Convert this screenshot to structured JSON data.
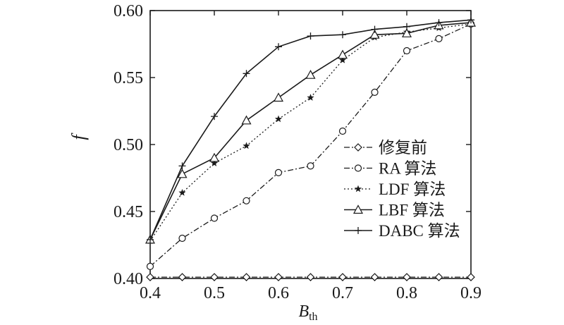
{
  "chart_data": {
    "type": "line",
    "title": "",
    "xlabel": "B",
    "xlabel_sub": "th",
    "ylabel": "f",
    "xlim": [
      0.4,
      0.9
    ],
    "ylim": [
      0.4,
      0.6
    ],
    "x_ticks": [
      "0.4",
      "0.5",
      "0.6",
      "0.7",
      "0.8",
      "0.9"
    ],
    "y_ticks": [
      "0.40",
      "0.45",
      "0.50",
      "0.55",
      "0.60"
    ],
    "grid": false,
    "legend_position": "center-right",
    "x": [
      0.4,
      0.45,
      0.5,
      0.55,
      0.6,
      0.65,
      0.7,
      0.75,
      0.8,
      0.85,
      0.9
    ],
    "series": [
      {
        "name": "修复前",
        "marker": "diamond",
        "dash": "dash-dot",
        "values": [
          0.401,
          0.401,
          0.401,
          0.401,
          0.401,
          0.401,
          0.401,
          0.401,
          0.401,
          0.401,
          0.401
        ]
      },
      {
        "name": "RA 算法",
        "marker": "circle",
        "dash": "dash-dot",
        "values": [
          0.409,
          0.43,
          0.445,
          0.458,
          0.479,
          0.484,
          0.51,
          0.539,
          0.57,
          0.579,
          0.59
        ]
      },
      {
        "name": "LDF 算法",
        "marker": "star",
        "dash": "dotted",
        "values": [
          0.428,
          0.464,
          0.486,
          0.499,
          0.519,
          0.535,
          0.563,
          0.58,
          0.584,
          0.587,
          0.59
        ]
      },
      {
        "name": "LBF 算法",
        "marker": "triangle",
        "dash": "solid",
        "values": [
          0.429,
          0.478,
          0.49,
          0.518,
          0.535,
          0.552,
          0.567,
          0.582,
          0.583,
          0.589,
          0.591
        ]
      },
      {
        "name": "DABC 算法",
        "marker": "plus",
        "dash": "solid",
        "values": [
          0.429,
          0.484,
          0.521,
          0.553,
          0.573,
          0.581,
          0.582,
          0.586,
          0.588,
          0.591,
          0.593
        ]
      }
    ]
  }
}
